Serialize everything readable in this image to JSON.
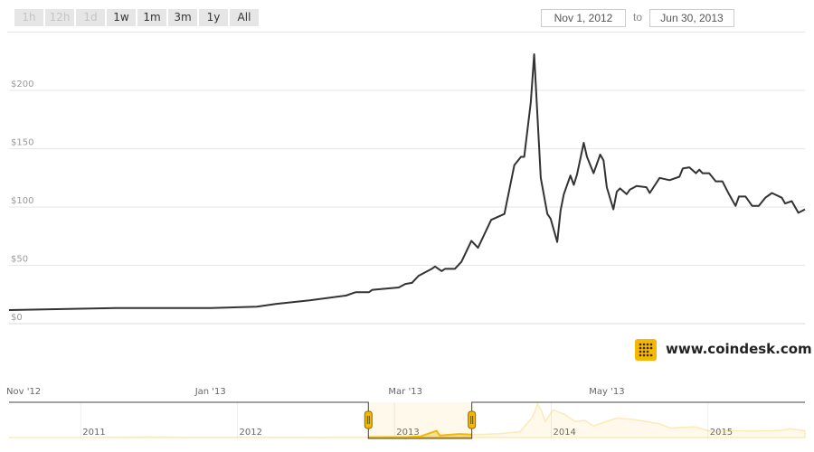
{
  "range_selector": {
    "buttons": [
      {
        "label": "1h",
        "enabled": false
      },
      {
        "label": "12h",
        "enabled": false
      },
      {
        "label": "1d",
        "enabled": false
      },
      {
        "label": "1w",
        "enabled": true
      },
      {
        "label": "1m",
        "enabled": true
      },
      {
        "label": "3m",
        "enabled": true
      },
      {
        "label": "1y",
        "enabled": true
      },
      {
        "label": "All",
        "enabled": true
      }
    ],
    "from_date": "Nov 1, 2012",
    "to_label": "to",
    "to_date": "Jun 30, 2013"
  },
  "branding": {
    "logo_text": "www.coindesk.com",
    "logo_color": "#f5b700",
    "icon": "coindesk-grid-icon"
  },
  "chart_data": {
    "type": "line",
    "line_color": "#333333",
    "grid": true,
    "ylim": [
      0,
      200
    ],
    "yticks": [
      {
        "v": 0,
        "label": "$0"
      },
      {
        "v": 50,
        "label": "$50"
      },
      {
        "v": 100,
        "label": "$100"
      },
      {
        "v": 150,
        "label": "$150"
      },
      {
        "v": 200,
        "label": "$200"
      }
    ],
    "xlim": [
      "2012-11-01",
      "2013-06-30"
    ],
    "xticks": [
      {
        "d": "2012-11-01",
        "label": "Nov '12"
      },
      {
        "d": "2013-01-01",
        "label": "Jan '13"
      },
      {
        "d": "2013-03-01",
        "label": "Mar '13"
      },
      {
        "d": "2013-05-01",
        "label": "May '13"
      }
    ],
    "series": [
      {
        "points": [
          [
            "2012-11-01",
            11.6
          ],
          [
            "2012-11-17",
            12.5
          ],
          [
            "2012-12-04",
            13.4
          ],
          [
            "2013-01-01",
            13.4
          ],
          [
            "2013-01-15",
            14.5
          ],
          [
            "2013-01-21",
            17
          ],
          [
            "2013-01-31",
            20
          ],
          [
            "2013-02-11",
            24
          ],
          [
            "2013-02-14",
            27
          ],
          [
            "2013-02-18",
            27
          ],
          [
            "2013-02-19",
            29
          ],
          [
            "2013-02-27",
            31
          ],
          [
            "2013-03-01",
            34
          ],
          [
            "2013-03-03",
            35
          ],
          [
            "2013-03-05",
            41
          ],
          [
            "2013-03-09",
            47
          ],
          [
            "2013-03-10",
            49
          ],
          [
            "2013-03-12",
            45
          ],
          [
            "2013-03-13",
            47
          ],
          [
            "2013-03-16",
            47
          ],
          [
            "2013-03-18",
            53
          ],
          [
            "2013-03-21",
            71
          ],
          [
            "2013-03-23",
            65
          ],
          [
            "2013-03-27",
            89
          ],
          [
            "2013-03-31",
            94
          ],
          [
            "2013-04-03",
            136
          ],
          [
            "2013-04-05",
            143
          ],
          [
            "2013-04-06",
            143
          ],
          [
            "2013-04-08",
            190
          ],
          [
            "2013-04-09",
            231
          ],
          [
            "2013-04-11",
            125
          ],
          [
            "2013-04-13",
            94
          ],
          [
            "2013-04-14",
            90
          ],
          [
            "2013-04-16",
            70
          ],
          [
            "2013-04-17",
            97
          ],
          [
            "2013-04-18",
            111
          ],
          [
            "2013-04-20",
            127
          ],
          [
            "2013-04-21",
            119
          ],
          [
            "2013-04-22",
            128
          ],
          [
            "2013-04-24",
            155
          ],
          [
            "2013-04-25",
            143
          ],
          [
            "2013-04-27",
            129
          ],
          [
            "2013-04-29",
            145
          ],
          [
            "2013-04-30",
            140
          ],
          [
            "2013-05-01",
            117
          ],
          [
            "2013-05-03",
            98
          ],
          [
            "2013-05-04",
            113
          ],
          [
            "2013-05-05",
            116
          ],
          [
            "2013-05-07",
            111
          ],
          [
            "2013-05-08",
            115
          ],
          [
            "2013-05-10",
            118
          ],
          [
            "2013-05-13",
            117
          ],
          [
            "2013-05-14",
            112
          ],
          [
            "2013-05-17",
            125
          ],
          [
            "2013-05-20",
            123
          ],
          [
            "2013-05-23",
            126
          ],
          [
            "2013-05-24",
            133
          ],
          [
            "2013-05-26",
            134
          ],
          [
            "2013-05-28",
            129
          ],
          [
            "2013-05-29",
            132
          ],
          [
            "2013-05-30",
            129
          ],
          [
            "2013-06-01",
            129
          ],
          [
            "2013-06-03",
            122
          ],
          [
            "2013-06-05",
            122
          ],
          [
            "2013-06-07",
            111
          ],
          [
            "2013-06-09",
            101
          ],
          [
            "2013-06-10",
            109
          ],
          [
            "2013-06-12",
            109
          ],
          [
            "2013-06-14",
            101
          ],
          [
            "2013-06-16",
            101
          ],
          [
            "2013-06-18",
            108
          ],
          [
            "2013-06-20",
            112
          ],
          [
            "2013-06-23",
            108
          ],
          [
            "2013-06-24",
            103
          ],
          [
            "2013-06-26",
            105
          ],
          [
            "2013-06-28",
            95
          ],
          [
            "2013-06-30",
            98
          ]
        ]
      }
    ],
    "navigator": {
      "color": "#f5b700",
      "xlim": [
        "2010-07-18",
        "2015-08-15"
      ],
      "xticks": [
        {
          "d": "2011-01-01",
          "label": "2011"
        },
        {
          "d": "2012-01-01",
          "label": "2012"
        },
        {
          "d": "2013-01-01",
          "label": "2013"
        },
        {
          "d": "2014-01-01",
          "label": "2014"
        },
        {
          "d": "2015-01-01",
          "label": "2015"
        }
      ],
      "selected": [
        "2012-11-01",
        "2013-06-30"
      ],
      "points": [
        [
          "2010-07-18",
          0.07
        ],
        [
          "2011-01-01",
          0.3
        ],
        [
          "2011-06-08",
          25
        ],
        [
          "2011-09-01",
          5
        ],
        [
          "2012-01-01",
          6
        ],
        [
          "2012-06-01",
          6.5
        ],
        [
          "2012-11-01",
          11
        ],
        [
          "2013-02-01",
          20
        ],
        [
          "2013-03-01",
          34
        ],
        [
          "2013-04-09",
          231
        ],
        [
          "2013-04-16",
          70
        ],
        [
          "2013-06-01",
          120
        ],
        [
          "2013-06-30",
          98
        ],
        [
          "2013-09-01",
          130
        ],
        [
          "2013-10-20",
          200
        ],
        [
          "2013-11-18",
          700
        ],
        [
          "2013-11-30",
          1150
        ],
        [
          "2013-12-10",
          900
        ],
        [
          "2013-12-18",
          550
        ],
        [
          "2014-01-05",
          950
        ],
        [
          "2014-02-01",
          800
        ],
        [
          "2014-02-25",
          550
        ],
        [
          "2014-03-20",
          590
        ],
        [
          "2014-04-10",
          400
        ],
        [
          "2014-06-03",
          670
        ],
        [
          "2014-07-15",
          620
        ],
        [
          "2014-09-10",
          470
        ],
        [
          "2014-10-05",
          330
        ],
        [
          "2014-12-01",
          370
        ],
        [
          "2015-01-14",
          190
        ],
        [
          "2015-02-15",
          240
        ],
        [
          "2015-04-15",
          220
        ],
        [
          "2015-06-15",
          240
        ],
        [
          "2015-07-12",
          300
        ],
        [
          "2015-08-15",
          230
        ]
      ]
    }
  }
}
